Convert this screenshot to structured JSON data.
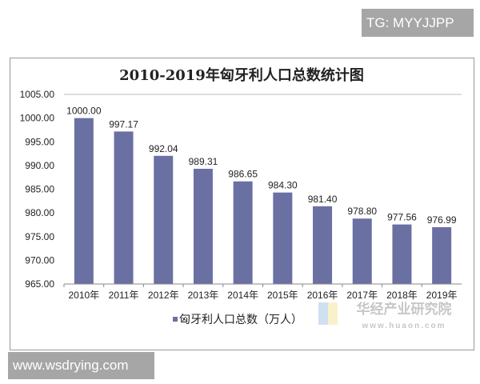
{
  "watermark_top": "TG: MYYJJPP",
  "watermark_bottom": "www.wsdrying.com",
  "logo": {
    "name": "华经产业研究院",
    "url": "www.huaon.com"
  },
  "chart_data": {
    "type": "bar",
    "title": "2010-2019年匈牙利人口总数统计图",
    "categories": [
      "2010年",
      "2011年",
      "2012年",
      "2013年",
      "2014年",
      "2015年",
      "2016年",
      "2017年",
      "2018年",
      "2019年"
    ],
    "series": [
      {
        "name": "匈牙利人口总数（万人）",
        "values": [
          1000.0,
          997.17,
          992.04,
          989.31,
          986.65,
          984.3,
          981.4,
          978.8,
          977.56,
          976.99
        ],
        "color": "#6b70a3"
      }
    ],
    "data_labels": [
      "1000.00",
      "997.17",
      "992.04",
      "989.31",
      "986.65",
      "984.30",
      "981.40",
      "978.80",
      "977.56",
      "976.99"
    ],
    "ylim": [
      965,
      1005
    ],
    "yticks": [
      "965.00",
      "970.00",
      "975.00",
      "980.00",
      "985.00",
      "990.00",
      "995.00",
      "1000.00",
      "1005.00"
    ],
    "legend": "bottom",
    "grid": false
  }
}
